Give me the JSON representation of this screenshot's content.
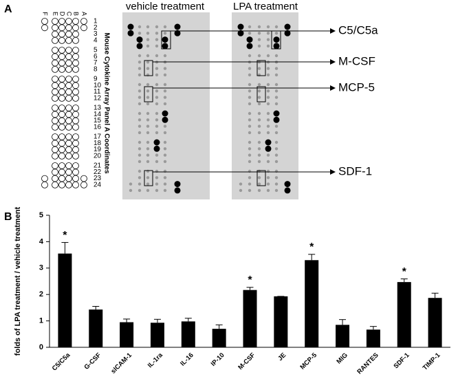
{
  "panel_a": {
    "label": "A",
    "columns": [
      "F",
      "E",
      "D",
      "C",
      "B",
      "A"
    ],
    "coordinates": [
      1,
      2,
      3,
      4,
      5,
      6,
      7,
      8,
      9,
      10,
      11,
      12,
      13,
      14,
      15,
      16,
      17,
      18,
      19,
      20,
      21,
      22,
      23,
      24
    ],
    "side_title": "Mouse Cytokine Array Panel A Coordinates",
    "array_titles": [
      "vehicle treatment",
      "LPA treatment"
    ],
    "callouts": [
      "C5/C5a",
      "M-CSF",
      "MCP-5",
      "SDF-1"
    ]
  },
  "chart_data": {
    "type": "bar",
    "panel_label": "B",
    "ylabel": "folds of LPA treatment / vehicle treatment",
    "categories": [
      "C5/C5a",
      "G-CSF",
      "sICAM-1",
      "IL-1ra",
      "IL-16",
      "IP-10",
      "M-CSF",
      "JE",
      "MCP-5",
      "MIG",
      "RANTES",
      "SDF-1",
      "TIMP-1"
    ],
    "values": [
      3.55,
      1.43,
      0.95,
      0.93,
      0.98,
      0.7,
      2.17,
      1.93,
      3.3,
      0.85,
      0.67,
      2.47,
      1.87
    ],
    "errors": [
      0.42,
      0.12,
      0.12,
      0.13,
      0.12,
      0.15,
      0.1,
      0,
      0.22,
      0.2,
      0.12,
      0.12,
      0.18
    ],
    "annotations": [
      "*",
      null,
      null,
      null,
      null,
      null,
      "*",
      null,
      "*",
      null,
      null,
      "*",
      null
    ],
    "color": "#000000",
    "ylim": [
      0,
      5
    ],
    "yticks": [
      0,
      1,
      2,
      3,
      4,
      5
    ]
  }
}
